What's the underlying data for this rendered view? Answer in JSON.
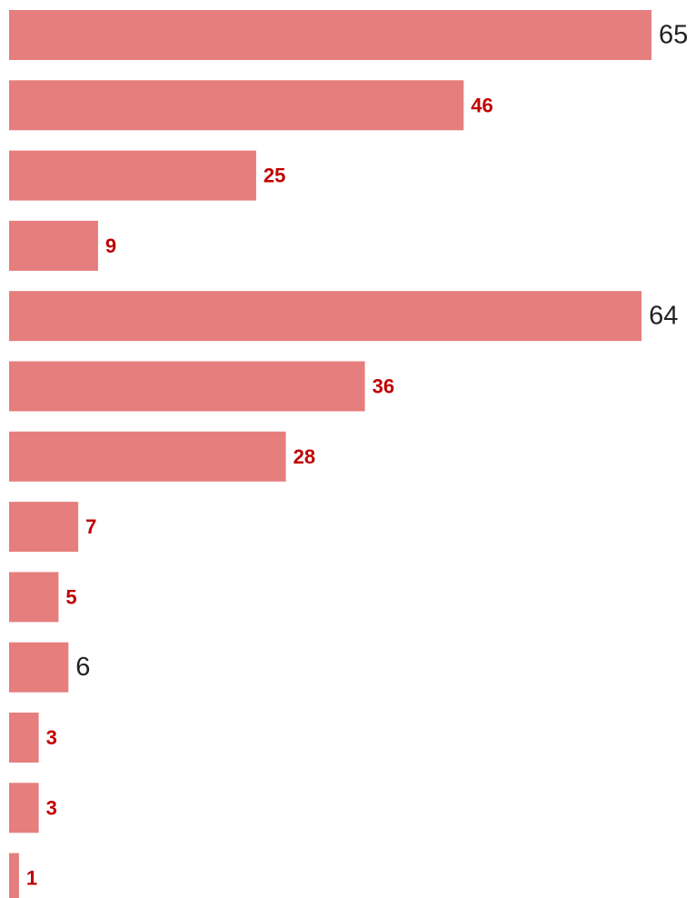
{
  "chart_data": {
    "type": "bar",
    "orientation": "horizontal",
    "title": "",
    "xlabel": "",
    "ylabel": "",
    "grid": false,
    "legend": "none",
    "values": [
      65,
      46,
      25,
      9,
      64,
      36,
      28,
      7,
      5,
      6,
      3,
      3,
      1
    ],
    "labels": [
      "65",
      "46",
      "25",
      "9",
      "64",
      "36",
      "28",
      "7",
      "5",
      "6",
      "3",
      "3",
      "1"
    ],
    "label_styles": [
      "plain",
      "bold",
      "bold",
      "bold",
      "plain",
      "bold",
      "bold",
      "bold",
      "bold",
      "plain",
      "bold",
      "bold",
      "bold"
    ],
    "xlim": [
      0,
      65
    ]
  },
  "colors": {
    "bar": "#E67E7E",
    "bold_label": "#C00000",
    "plain_label": "#222222",
    "background": "#FFFFFF"
  }
}
